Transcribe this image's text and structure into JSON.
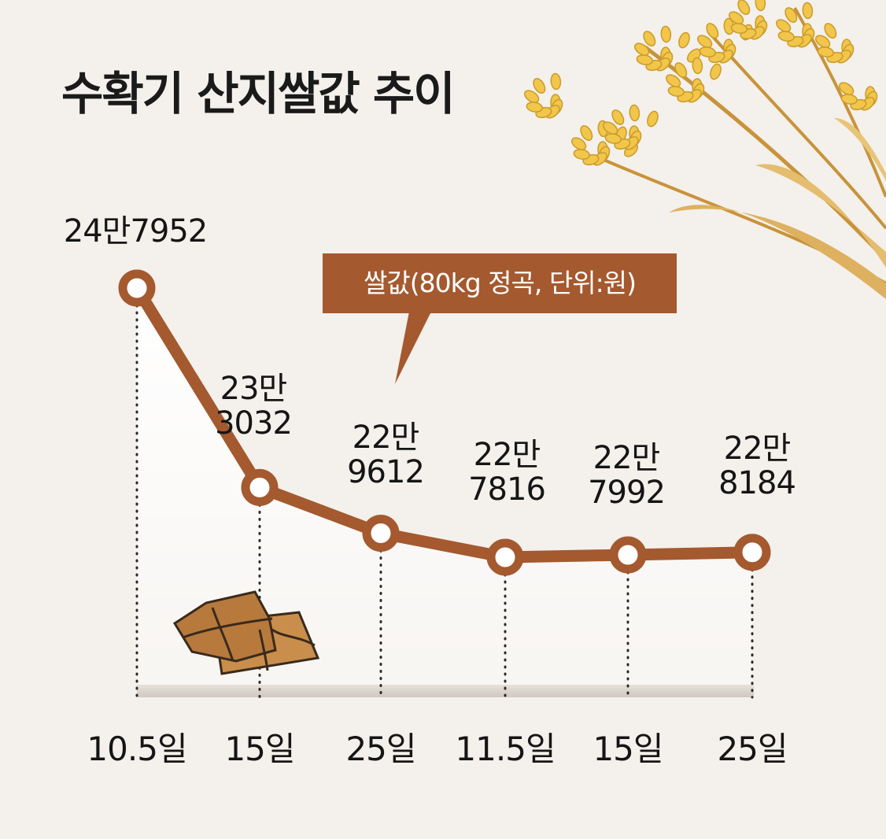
{
  "title": "수확기 산지쌀값 추이",
  "unit_label": "쌀값(80kg 정곡, 단위:원)",
  "colors": {
    "background": "#f4f0eb",
    "line": "#a4592f",
    "marker_fill": "#ffffff",
    "unit_box": "#a4592f",
    "text": "#151515"
  },
  "chart_data": {
    "type": "line",
    "title": "수확기 산지쌀값 추이",
    "unit": "쌀값(80kg 정곡, 단위:원)",
    "categories": [
      "10.5일",
      "15일",
      "25일",
      "11.5일",
      "15일",
      "25일"
    ],
    "values": [
      247952,
      233032,
      229612,
      227816,
      227992,
      228184
    ],
    "data_labels": [
      [
        "24만7952"
      ],
      [
        "23만",
        "3032"
      ],
      [
        "22만",
        "9612"
      ],
      [
        "22만",
        "7816"
      ],
      [
        "22만",
        "7992"
      ],
      [
        "22만",
        "8184"
      ]
    ],
    "grid": false,
    "legend": "none",
    "marker": "circle",
    "drop_lines": "dotted"
  }
}
